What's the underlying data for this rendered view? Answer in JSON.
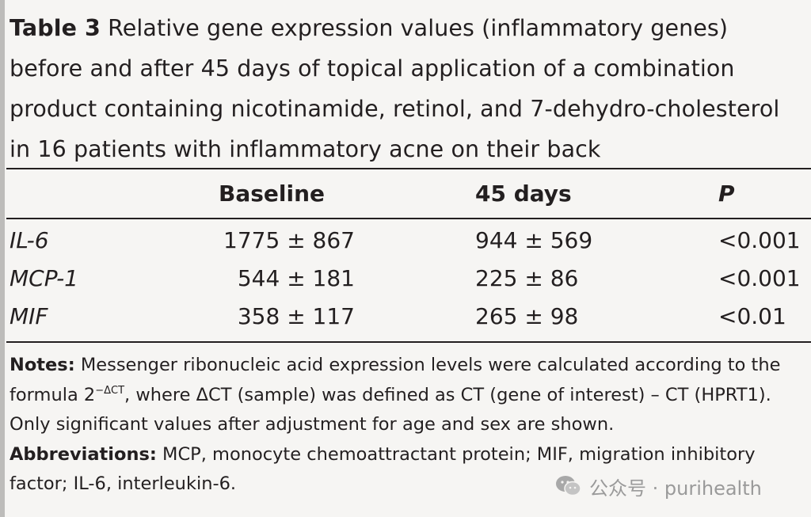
{
  "caption": {
    "label": "Table 3",
    "text": " Relative gene expression values (inflammatory genes) before and after 45 days of topical application of a combination product containing nicotinamide, retinol, and 7-dehydro-cholesterol in 16 patients with inflammatory acne on their back"
  },
  "table": {
    "headers": {
      "baseline": "Baseline",
      "days45": "45 days",
      "p": "P"
    },
    "rows": [
      {
        "gene": "IL-6",
        "baseline": "1775 ± 867",
        "days45": "944 ± 569",
        "p": "<0.001"
      },
      {
        "gene": "MCP-1",
        "baseline": "544 ± 181",
        "days45": "225 ± 86",
        "p": "<0.001"
      },
      {
        "gene": "MIF",
        "baseline": "358 ± 117",
        "days45": "265 ± 98",
        "p": "<0.01"
      }
    ]
  },
  "notes": {
    "notes_label": "Notes:",
    "notes_text_1": " Messenger ribonucleic acid expression levels were calculated according to the formula 2",
    "notes_sup": "−ΔCT",
    "notes_text_2": ", where ΔCT (sample) was defined as CT (gene of interest) – CT (HPRT1). Only significant values after adjustment for age and sex are shown.",
    "abbr_label": "Abbreviations:",
    "abbr_text": " MCP, monocyte chemoattractant protein; MIF, migration inhibitory factor; IL-6, interleukin-6."
  },
  "watermark": {
    "icon": "wechat-icon",
    "text": "公众号 · purihealth"
  }
}
